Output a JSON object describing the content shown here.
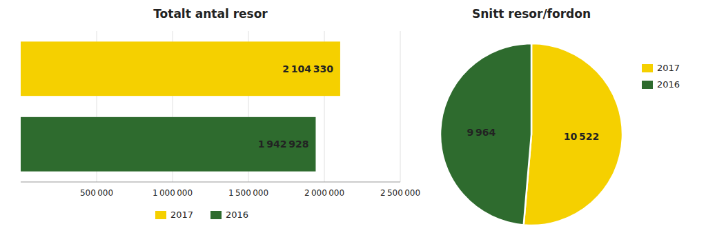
{
  "chart_data": [
    {
      "type": "bar",
      "orientation": "horizontal",
      "title": "Totalt antal resor",
      "categories": [
        "2017",
        "2016"
      ],
      "values": [
        2104330,
        1942928
      ],
      "value_labels": [
        "2 104 330",
        "1 942 928"
      ],
      "colors": [
        "#F5D000",
        "#2E6B2E"
      ],
      "xlim": [
        0,
        2500000
      ],
      "xticks": [
        {
          "value": 500000,
          "label": "500 000"
        },
        {
          "value": 1000000,
          "label": "1 000 000"
        },
        {
          "value": 1500000,
          "label": "1 500 000"
        },
        {
          "value": 2000000,
          "label": "2 000 000"
        },
        {
          "value": 2500000,
          "label": "2 500 000"
        }
      ],
      "grid": true,
      "data_labels": true,
      "tick_labels": "x",
      "legend": "bottom"
    },
    {
      "type": "pie",
      "title": "Snitt resor/fordon",
      "categories": [
        "2017",
        "2016"
      ],
      "values": [
        10522,
        9964
      ],
      "value_labels": [
        "10 522",
        "9 964"
      ],
      "colors": [
        "#F5D000",
        "#2E6B2E"
      ],
      "data_labels": true,
      "legend": "right"
    }
  ]
}
